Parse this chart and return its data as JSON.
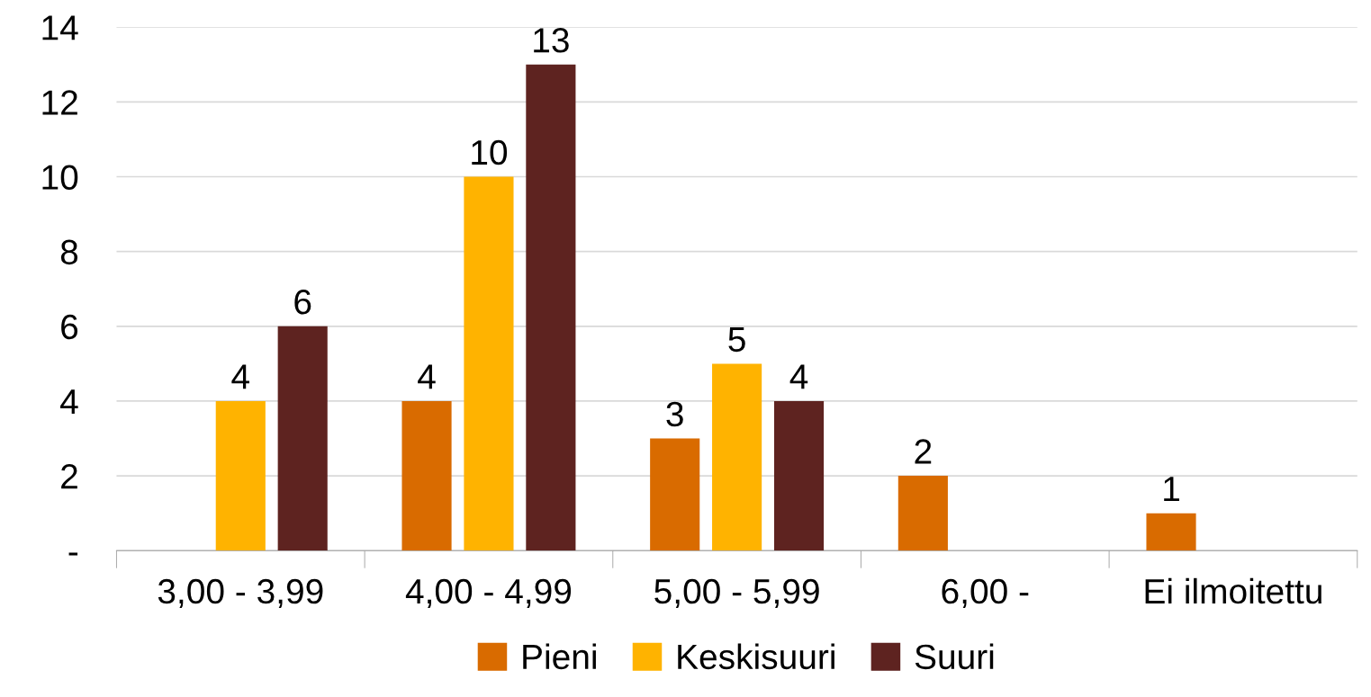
{
  "chart_data": {
    "type": "bar",
    "categories": [
      "3,00 - 3,99",
      "4,00 - 4,99",
      "5,00 - 5,99",
      "6,00 -",
      "Ei ilmoitettu"
    ],
    "series": [
      {
        "name": "Pieni",
        "color": "#d96b00",
        "values": [
          null,
          4,
          3,
          2,
          1
        ]
      },
      {
        "name": "Keskisuuri",
        "color": "#ffb300",
        "values": [
          4,
          10,
          5,
          null,
          null
        ]
      },
      {
        "name": "Suuri",
        "color": "#5e2320",
        "values": [
          6,
          13,
          4,
          null,
          null
        ]
      }
    ],
    "ylim": [
      0,
      14
    ],
    "yticks": [
      {
        "value": 0,
        "label": "-"
      },
      2,
      4,
      6,
      8,
      10,
      12,
      14
    ],
    "grid": "y",
    "legend": "bottom",
    "data_labels": true
  }
}
